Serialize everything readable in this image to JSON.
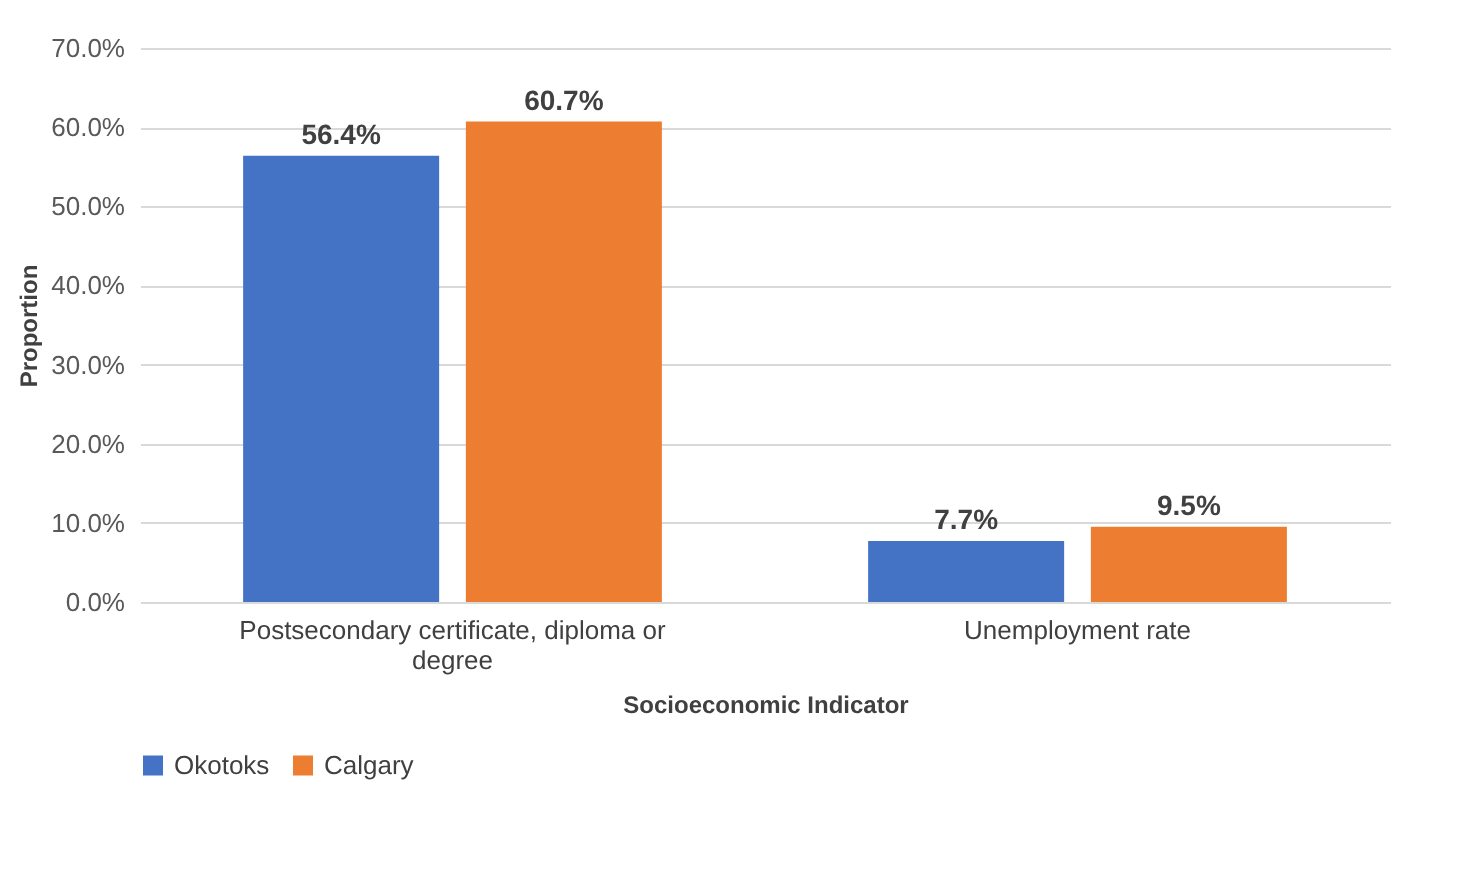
{
  "chart_data": {
    "type": "bar",
    "xlabel": "Socioeconomic Indicator",
    "ylabel": "Proportion",
    "categories": [
      "Postsecondary certificate, diploma or degree",
      "Unemployment rate"
    ],
    "series": [
      {
        "name": "Okotoks",
        "color": "#4472c4",
        "values": [
          56.4,
          7.7
        ],
        "value_labels": [
          "56.4%",
          "7.7%"
        ]
      },
      {
        "name": "Calgary",
        "color": "#ed7d31",
        "values": [
          60.7,
          9.5
        ],
        "value_labels": [
          "60.7%",
          "9.5%"
        ]
      }
    ],
    "ylim": [
      0,
      70
    ],
    "yticks": [
      {
        "value": 0,
        "label": "0.0%"
      },
      {
        "value": 10,
        "label": "10.0%"
      },
      {
        "value": 20,
        "label": "20.0%"
      },
      {
        "value": 30,
        "label": "30.0%"
      },
      {
        "value": 40,
        "label": "40.0%"
      },
      {
        "value": 50,
        "label": "50.0%"
      },
      {
        "value": 60,
        "label": "60.0%"
      },
      {
        "value": 70,
        "label": "70.0%"
      }
    ],
    "grid": "y",
    "legend": "bottom"
  }
}
